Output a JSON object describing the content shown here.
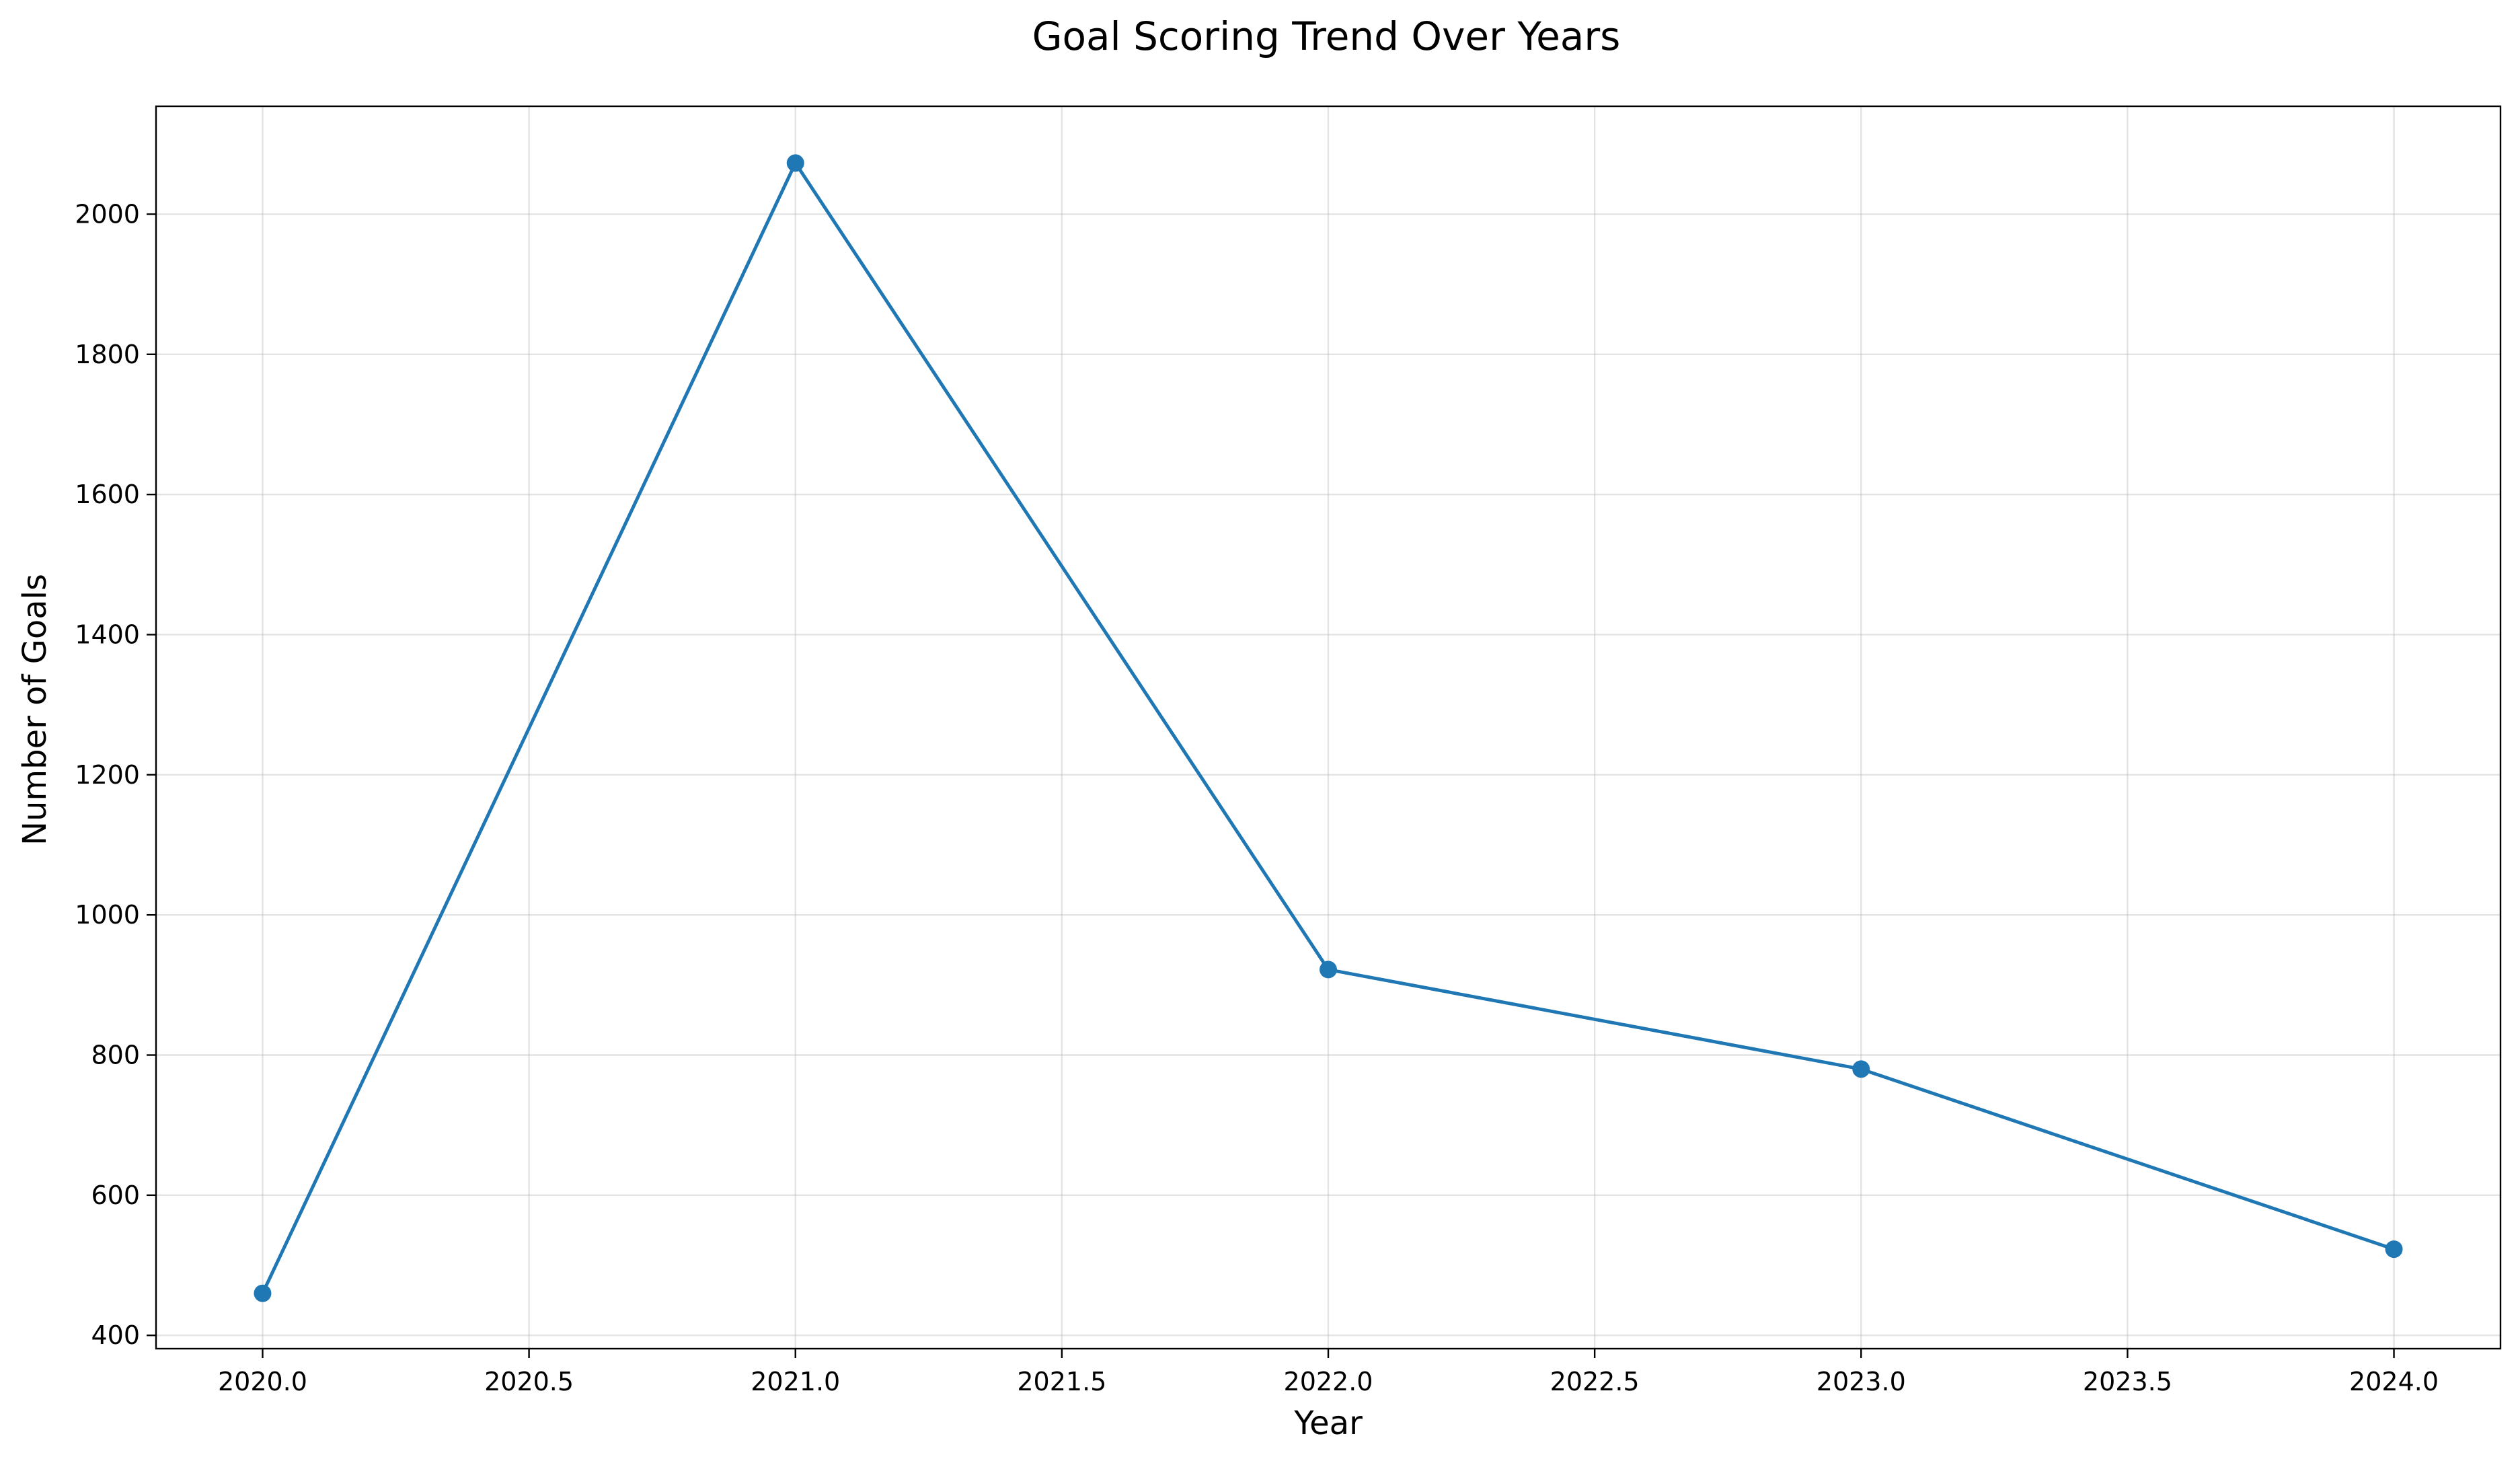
{
  "chart_data": {
    "type": "line",
    "title": "Goal Scoring Trend Over Years",
    "xlabel": "Year",
    "ylabel": "Number of Goals",
    "x": [
      2020,
      2021,
      2022,
      2023,
      2024
    ],
    "series": [
      {
        "values": [
          460,
          2073,
          922,
          780,
          523
        ],
        "color": "#1f77b4",
        "marker": "circle"
      }
    ],
    "xlim": [
      2019.8,
      2024.2
    ],
    "ylim": [
      381,
      2154
    ],
    "xticks": [
      2020.0,
      2020.5,
      2021.0,
      2021.5,
      2022.0,
      2022.5,
      2023.0,
      2023.5,
      2024.0
    ],
    "xtick_labels": [
      "2020.0",
      "2020.5",
      "2021.0",
      "2021.5",
      "2022.0",
      "2022.5",
      "2023.0",
      "2023.5",
      "2024.0"
    ],
    "yticks": [
      400,
      600,
      800,
      1000,
      1200,
      1400,
      1600,
      1800,
      2000
    ],
    "ytick_labels": [
      "400",
      "600",
      "800",
      "1000",
      "1200",
      "1400",
      "1600",
      "1800",
      "2000"
    ],
    "grid": true,
    "legend": "none"
  }
}
